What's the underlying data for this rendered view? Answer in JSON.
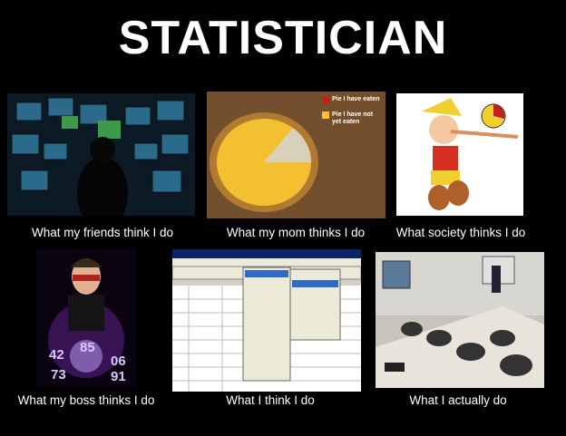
{
  "title": "STATISTICIAN",
  "panels": [
    {
      "caption": "What my friends think I do"
    },
    {
      "caption": "What my mom thinks I do",
      "labels": [
        "Pie I have eaten",
        "Pie I have not yet eaten"
      ]
    },
    {
      "caption": "What society thinks I do"
    },
    {
      "caption": "What my boss thinks I do",
      "labels": [
        "42",
        "85",
        "06",
        "73",
        "91"
      ]
    },
    {
      "caption": "What I think I do"
    },
    {
      "caption": "What I actually do"
    }
  ]
}
